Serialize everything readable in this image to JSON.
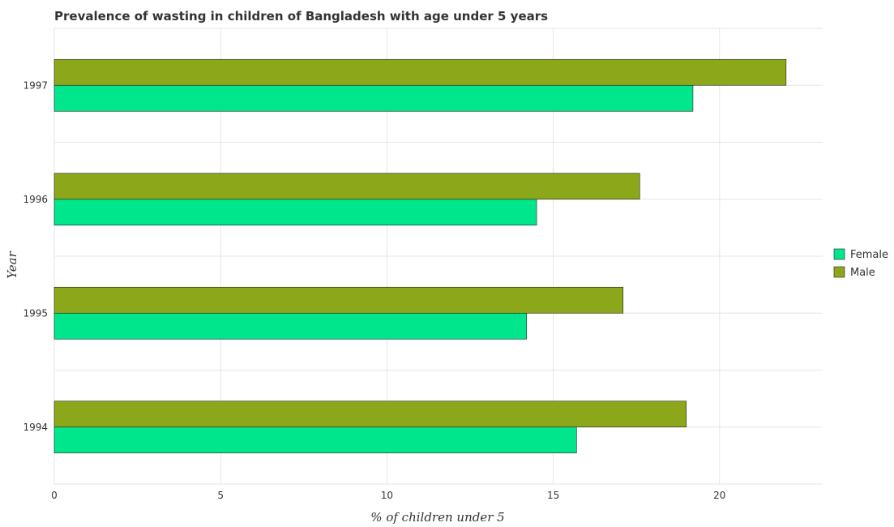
{
  "colors": {
    "female": "#00e68c",
    "male": "#8ca81a"
  },
  "chart_data": {
    "type": "bar",
    "orientation": "horizontal",
    "title": "Prevalence of wasting in children of Bangladesh with age under 5 years",
    "xlabel": "% of children under 5",
    "ylabel": "Year",
    "categories": [
      "1994",
      "1995",
      "1996",
      "1997"
    ],
    "series": [
      {
        "name": "Female",
        "values": [
          15.7,
          14.2,
          14.5,
          19.2
        ]
      },
      {
        "name": "Male",
        "values": [
          19.0,
          17.1,
          17.6,
          22.0
        ]
      }
    ],
    "xlim": [
      0,
      23.1
    ],
    "xticks": [
      0,
      5,
      10,
      15,
      20
    ],
    "grid": true,
    "legend": "right"
  }
}
